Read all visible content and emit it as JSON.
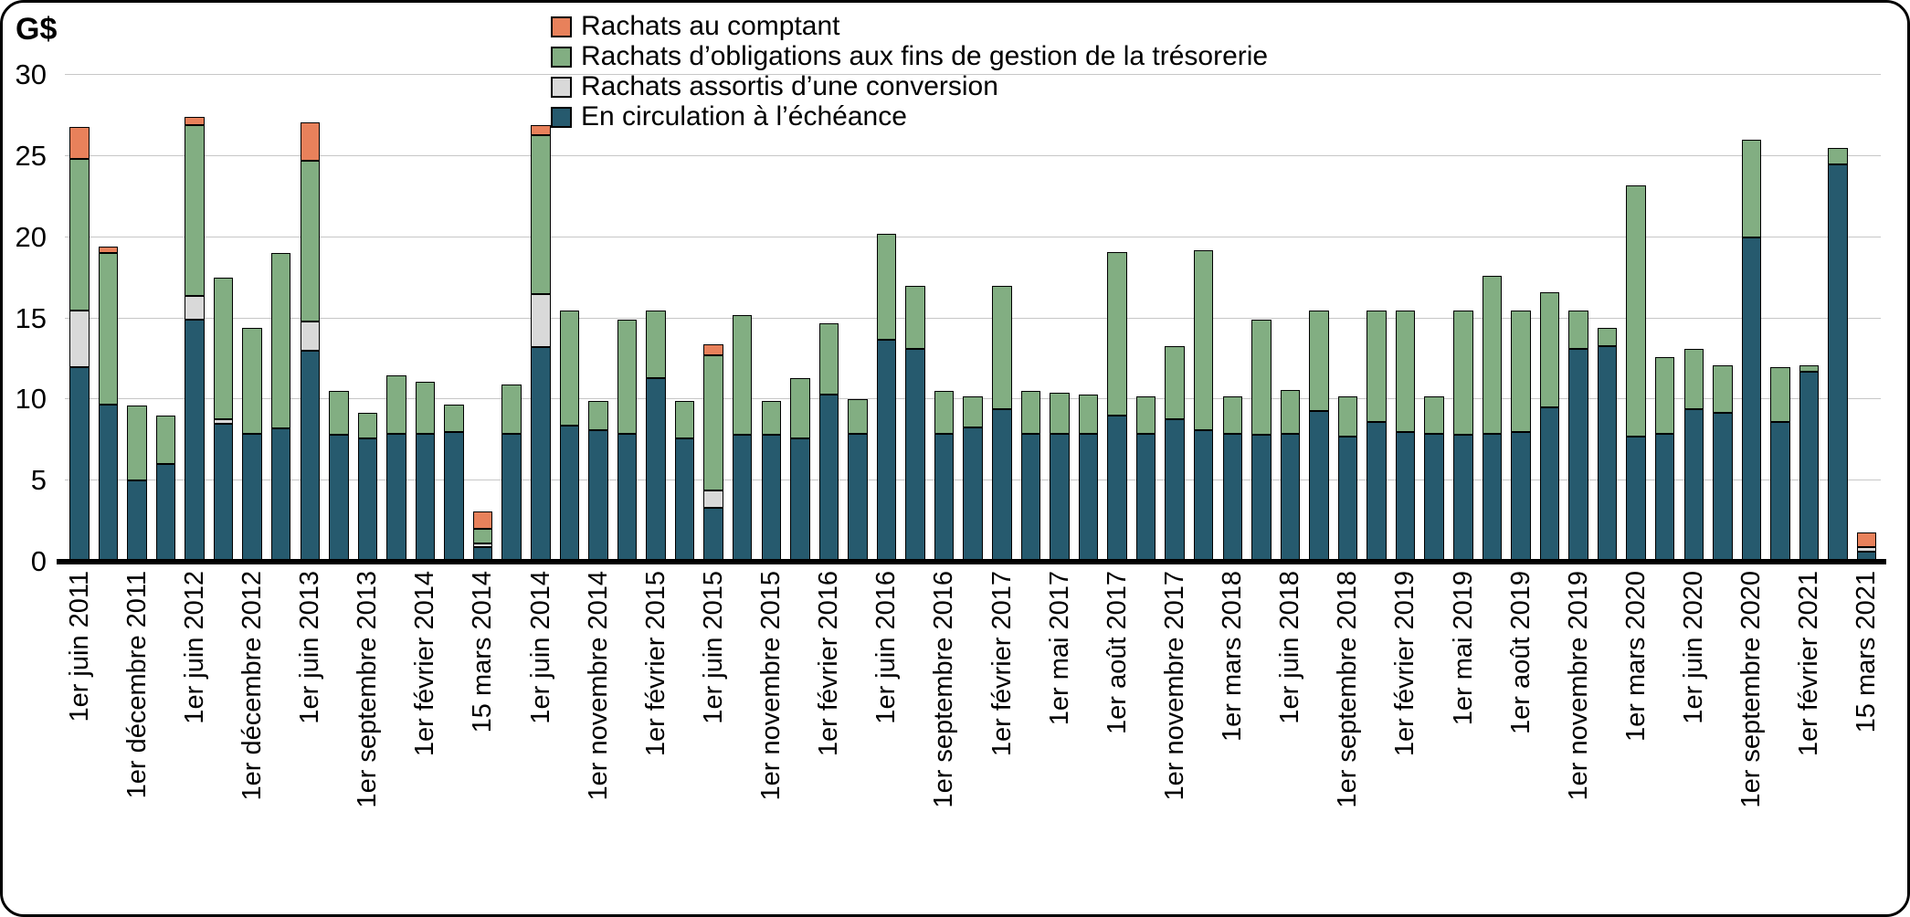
{
  "figure": {
    "y_axis_unit": "G$"
  },
  "chart_data": {
    "type": "bar",
    "stacked": true,
    "title": "",
    "xlabel": "",
    "ylabel": "G$",
    "unit": "milliards de dollars (G$)",
    "ylim": [
      0,
      30
    ],
    "yticks": [
      0,
      5,
      10,
      15,
      20,
      25,
      30
    ],
    "grid": "horizontal",
    "legend_position": "top-center",
    "legend": [
      {
        "key": "comptant",
        "label": "Rachats au comptant",
        "color": "#E8815B"
      },
      {
        "key": "tresorerie",
        "label": "Rachats d’obligations aux fins de gestion de la trésorerie",
        "color": "#82AE82"
      },
      {
        "key": "conversion",
        "label": "Rachats assortis d’une conversion",
        "color": "#D9D9D9"
      },
      {
        "key": "en_circulation",
        "label": "En circulation à l’échéance",
        "color": "#265A6E"
      }
    ],
    "stack_order_bottom_to_top": [
      "en_circulation",
      "conversion",
      "tresorerie",
      "comptant"
    ],
    "bars": [
      {
        "label": "1er juin 2011",
        "en_circulation": 12.0,
        "conversion": 3.5,
        "tresorerie": 9.3,
        "comptant": 2.0
      },
      {
        "label": "",
        "en_circulation": 9.7,
        "conversion": 0,
        "tresorerie": 9.3,
        "comptant": 0.4
      },
      {
        "label": "1er décembre 2011",
        "en_circulation": 5.0,
        "conversion": 0,
        "tresorerie": 4.6,
        "comptant": 0
      },
      {
        "label": "",
        "en_circulation": 6.0,
        "conversion": 0,
        "tresorerie": 3.0,
        "comptant": 0
      },
      {
        "label": "1er juin 2012",
        "en_circulation": 14.9,
        "conversion": 1.5,
        "tresorerie": 10.5,
        "comptant": 0.5
      },
      {
        "label": "",
        "en_circulation": 8.5,
        "conversion": 0.3,
        "tresorerie": 8.7,
        "comptant": 0
      },
      {
        "label": "1er décembre 2012",
        "en_circulation": 7.9,
        "conversion": 0,
        "tresorerie": 6.5,
        "comptant": 0
      },
      {
        "label": "",
        "en_circulation": 8.2,
        "conversion": 0,
        "tresorerie": 10.8,
        "comptant": 0
      },
      {
        "label": "1er juin 2013",
        "en_circulation": 13.0,
        "conversion": 1.8,
        "tresorerie": 9.9,
        "comptant": 2.4
      },
      {
        "label": "",
        "en_circulation": 7.8,
        "conversion": 0,
        "tresorerie": 2.7,
        "comptant": 0
      },
      {
        "label": "1er septembre 2013",
        "en_circulation": 7.6,
        "conversion": 0,
        "tresorerie": 1.6,
        "comptant": 0
      },
      {
        "label": "",
        "en_circulation": 7.9,
        "conversion": 0,
        "tresorerie": 3.6,
        "comptant": 0
      },
      {
        "label": "1er février 2014",
        "en_circulation": 7.9,
        "conversion": 0,
        "tresorerie": 3.2,
        "comptant": 0
      },
      {
        "label": "",
        "en_circulation": 8.0,
        "conversion": 0,
        "tresorerie": 1.7,
        "comptant": 0
      },
      {
        "label": "15 mars 2014",
        "en_circulation": 0.9,
        "conversion": 0.2,
        "tresorerie": 0.9,
        "comptant": 1.1
      },
      {
        "label": "",
        "en_circulation": 7.9,
        "conversion": 0,
        "tresorerie": 3.0,
        "comptant": 0
      },
      {
        "label": "1er juin 2014",
        "en_circulation": 13.2,
        "conversion": 3.3,
        "tresorerie": 9.8,
        "comptant": 0.6
      },
      {
        "label": "",
        "en_circulation": 8.4,
        "conversion": 0,
        "tresorerie": 7.1,
        "comptant": 0
      },
      {
        "label": "1er novembre 2014",
        "en_circulation": 8.1,
        "conversion": 0,
        "tresorerie": 1.8,
        "comptant": 0
      },
      {
        "label": "",
        "en_circulation": 7.9,
        "conversion": 0,
        "tresorerie": 7.0,
        "comptant": 0
      },
      {
        "label": "1er février 2015",
        "en_circulation": 11.3,
        "conversion": 0,
        "tresorerie": 4.2,
        "comptant": 0
      },
      {
        "label": "",
        "en_circulation": 7.6,
        "conversion": 0,
        "tresorerie": 2.3,
        "comptant": 0
      },
      {
        "label": "1er juin 2015",
        "en_circulation": 3.3,
        "conversion": 1.1,
        "tresorerie": 8.3,
        "comptant": 0.7
      },
      {
        "label": "",
        "en_circulation": 7.8,
        "conversion": 0,
        "tresorerie": 7.4,
        "comptant": 0
      },
      {
        "label": "1er novembre 2015",
        "en_circulation": 7.8,
        "conversion": 0,
        "tresorerie": 2.1,
        "comptant": 0
      },
      {
        "label": "",
        "en_circulation": 7.6,
        "conversion": 0,
        "tresorerie": 3.7,
        "comptant": 0
      },
      {
        "label": "1er février 2016",
        "en_circulation": 10.3,
        "conversion": 0,
        "tresorerie": 4.4,
        "comptant": 0
      },
      {
        "label": "",
        "en_circulation": 7.9,
        "conversion": 0,
        "tresorerie": 2.1,
        "comptant": 0
      },
      {
        "label": "1er juin 2016",
        "en_circulation": 13.7,
        "conversion": 0,
        "tresorerie": 6.5,
        "comptant": 0
      },
      {
        "label": "",
        "en_circulation": 13.1,
        "conversion": 0,
        "tresorerie": 3.9,
        "comptant": 0
      },
      {
        "label": "1er septembre 2016",
        "en_circulation": 7.9,
        "conversion": 0,
        "tresorerie": 2.6,
        "comptant": 0
      },
      {
        "label": "",
        "en_circulation": 8.3,
        "conversion": 0,
        "tresorerie": 1.9,
        "comptant": 0
      },
      {
        "label": "1er février 2017",
        "en_circulation": 9.4,
        "conversion": 0,
        "tresorerie": 7.6,
        "comptant": 0
      },
      {
        "label": "",
        "en_circulation": 7.9,
        "conversion": 0,
        "tresorerie": 2.6,
        "comptant": 0
      },
      {
        "label": "1er mai 2017",
        "en_circulation": 7.9,
        "conversion": 0,
        "tresorerie": 2.5,
        "comptant": 0
      },
      {
        "label": "",
        "en_circulation": 7.9,
        "conversion": 0,
        "tresorerie": 2.4,
        "comptant": 0
      },
      {
        "label": "1er août 2017",
        "en_circulation": 9.0,
        "conversion": 0,
        "tresorerie": 10.1,
        "comptant": 0
      },
      {
        "label": "",
        "en_circulation": 7.9,
        "conversion": 0,
        "tresorerie": 2.3,
        "comptant": 0
      },
      {
        "label": "1er novembre 2017",
        "en_circulation": 8.8,
        "conversion": 0,
        "tresorerie": 4.5,
        "comptant": 0
      },
      {
        "label": "",
        "en_circulation": 8.1,
        "conversion": 0,
        "tresorerie": 11.1,
        "comptant": 0
      },
      {
        "label": "1er mars 2018",
        "en_circulation": 7.9,
        "conversion": 0,
        "tresorerie": 2.3,
        "comptant": 0
      },
      {
        "label": "",
        "en_circulation": 7.8,
        "conversion": 0,
        "tresorerie": 7.1,
        "comptant": 0
      },
      {
        "label": "1er juin 2018",
        "en_circulation": 7.9,
        "conversion": 0,
        "tresorerie": 2.7,
        "comptant": 0
      },
      {
        "label": "",
        "en_circulation": 9.3,
        "conversion": 0,
        "tresorerie": 6.2,
        "comptant": 0
      },
      {
        "label": "1er septembre 2018",
        "en_circulation": 7.7,
        "conversion": 0,
        "tresorerie": 2.5,
        "comptant": 0
      },
      {
        "label": "",
        "en_circulation": 8.6,
        "conversion": 0,
        "tresorerie": 6.9,
        "comptant": 0
      },
      {
        "label": "1er février 2019",
        "en_circulation": 8.0,
        "conversion": 0,
        "tresorerie": 7.5,
        "comptant": 0
      },
      {
        "label": "",
        "en_circulation": 7.9,
        "conversion": 0,
        "tresorerie": 2.3,
        "comptant": 0
      },
      {
        "label": "1er mai 2019",
        "en_circulation": 7.8,
        "conversion": 0,
        "tresorerie": 7.7,
        "comptant": 0
      },
      {
        "label": "",
        "en_circulation": 7.9,
        "conversion": 0,
        "tresorerie": 9.7,
        "comptant": 0
      },
      {
        "label": "1er août 2019",
        "en_circulation": 8.0,
        "conversion": 0,
        "tresorerie": 7.5,
        "comptant": 0
      },
      {
        "label": "",
        "en_circulation": 9.5,
        "conversion": 0,
        "tresorerie": 7.1,
        "comptant": 0
      },
      {
        "label": "1er novembre 2019",
        "en_circulation": 13.1,
        "conversion": 0,
        "tresorerie": 2.4,
        "comptant": 0
      },
      {
        "label": "",
        "en_circulation": 13.3,
        "conversion": 0,
        "tresorerie": 1.1,
        "comptant": 0
      },
      {
        "label": "1er mars 2020",
        "en_circulation": 7.7,
        "conversion": 0,
        "tresorerie": 15.5,
        "comptant": 0
      },
      {
        "label": "",
        "en_circulation": 7.9,
        "conversion": 0,
        "tresorerie": 4.7,
        "comptant": 0
      },
      {
        "label": "1er juin 2020",
        "en_circulation": 9.4,
        "conversion": 0,
        "tresorerie": 3.7,
        "comptant": 0
      },
      {
        "label": "",
        "en_circulation": 9.2,
        "conversion": 0,
        "tresorerie": 2.9,
        "comptant": 0
      },
      {
        "label": "1er septembre 2020",
        "en_circulation": 20.0,
        "conversion": 0,
        "tresorerie": 6.0,
        "comptant": 0
      },
      {
        "label": "",
        "en_circulation": 8.6,
        "conversion": 0,
        "tresorerie": 3.4,
        "comptant": 0
      },
      {
        "label": "1er février 2021",
        "en_circulation": 11.7,
        "conversion": 0,
        "tresorerie": 0.4,
        "comptant": 0
      },
      {
        "label": "",
        "en_circulation": 24.5,
        "conversion": 0,
        "tresorerie": 1.0,
        "comptant": 0
      },
      {
        "label": "15 mars 2021",
        "en_circulation": 0.6,
        "conversion": 0.3,
        "tresorerie": 0,
        "comptant": 0.9
      }
    ]
  }
}
